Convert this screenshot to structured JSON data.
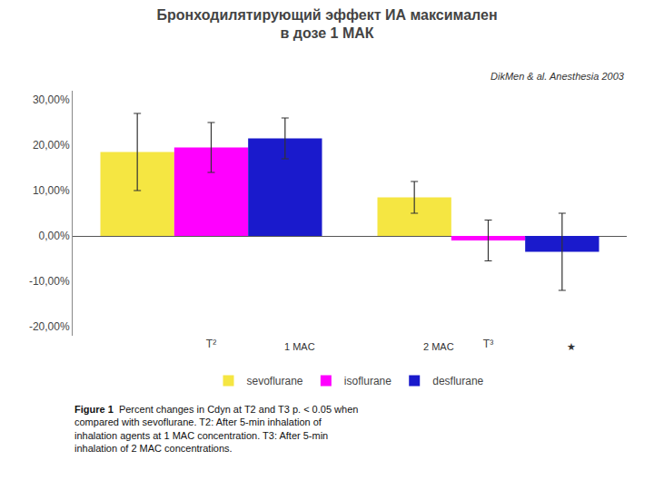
{
  "chart_data": {
    "type": "bar",
    "title": "Бронходилятирующий эффект ИА максимален\nв дозе 1 МАК",
    "subtitle": "DikMen & al. Anesthesia 2003",
    "categories": [
      "T²",
      "T³"
    ],
    "series": [
      {
        "name": "sevoflurane",
        "color": "#F5E642",
        "values": [
          18.5,
          8.5
        ],
        "errors": [
          8.5,
          3.5
        ]
      },
      {
        "name": "isoflurane",
        "color": "#FF00FF",
        "values": [
          19.5,
          -1.0
        ],
        "errors": [
          5.5,
          4.5
        ]
      },
      {
        "name": "desflurane",
        "color": "#1a1aCC",
        "values": [
          21.5,
          -3.5
        ],
        "errors": [
          4.5,
          8.5
        ]
      }
    ],
    "ylim": [
      -22,
      32
    ],
    "yticks": [
      {
        "value": -20,
        "label": "-20,00%"
      },
      {
        "value": -10,
        "label": "-10,00%"
      },
      {
        "value": 0,
        "label": "0,00%"
      },
      {
        "value": 10,
        "label": "10,00%"
      },
      {
        "value": 20,
        "label": "20,00%"
      },
      {
        "value": 30,
        "label": "30,00%"
      }
    ],
    "annotations": [
      "1 MAC",
      "2 MAC",
      "★"
    ],
    "caption": [
      "Figure 1",
      "Percent changes in Cdyn at T2 and T3 p. < 0.05 when\ncompared with sevoflurane. T2: After 5-min inhalation of\ninhalation agents at 1 MAC concentration. T3: After 5-min\ninhalation of 2 MAC concentrations."
    ],
    "grid": false,
    "legend": "bottom"
  }
}
